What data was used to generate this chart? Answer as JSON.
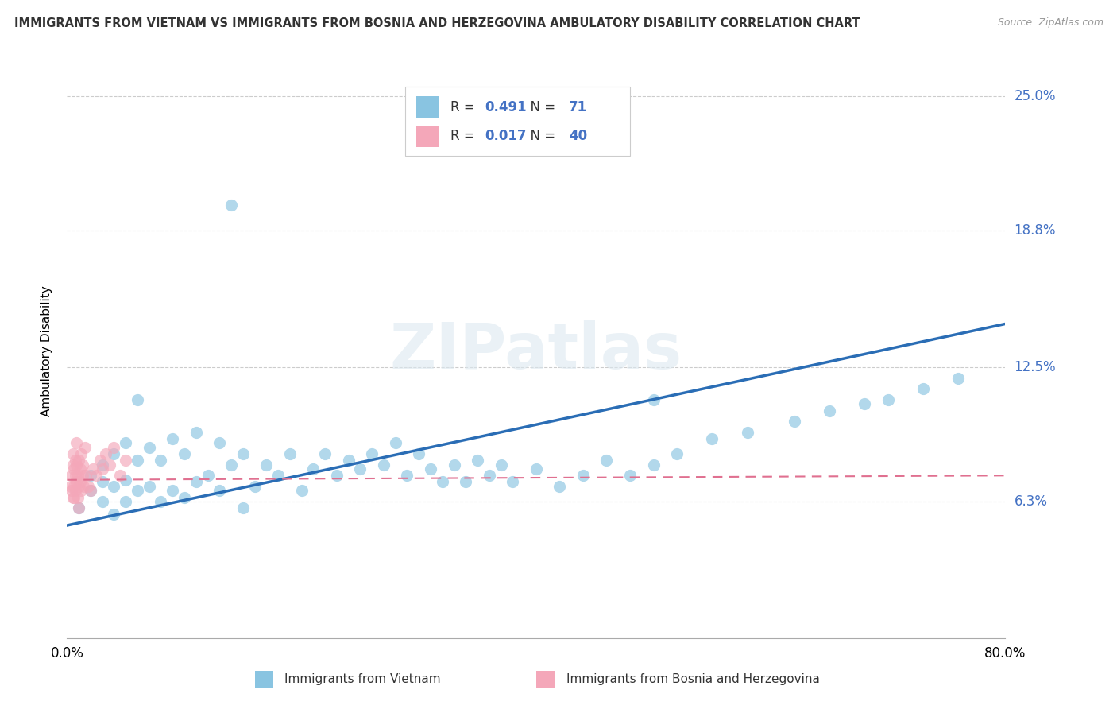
{
  "title": "IMMIGRANTS FROM VIETNAM VS IMMIGRANTS FROM BOSNIA AND HERZEGOVINA AMBULATORY DISABILITY CORRELATION CHART",
  "source": "Source: ZipAtlas.com",
  "ylabel": "Ambulatory Disability",
  "xlim": [
    0.0,
    0.8
  ],
  "ylim": [
    0.0,
    0.265
  ],
  "yticks": [
    0.063,
    0.125,
    0.188,
    0.25
  ],
  "ytick_labels": [
    "6.3%",
    "12.5%",
    "18.8%",
    "25.0%"
  ],
  "xtick_labels": [
    "0.0%",
    "80.0%"
  ],
  "color_vietnam": "#89c4e1",
  "color_bosnia": "#f4a7b9",
  "trend_vietnam_color": "#2a6db5",
  "trend_bosnia_color": "#e07090",
  "R_vietnam": 0.491,
  "N_vietnam": 71,
  "R_bosnia": 0.017,
  "N_bosnia": 40,
  "watermark": "ZIPatlas",
  "legend_label_vietnam": "Immigrants from Vietnam",
  "legend_label_bosnia": "Immigrants from Bosnia and Herzegovina",
  "vietnam_trend_x0": 0.0,
  "vietnam_trend_y0": 0.052,
  "vietnam_trend_x1": 0.8,
  "vietnam_trend_y1": 0.145,
  "bosnia_trend_x0": 0.0,
  "bosnia_trend_y0": 0.073,
  "bosnia_trend_x1": 0.8,
  "bosnia_trend_y1": 0.075,
  "vietnam_x": [
    0.01,
    0.02,
    0.02,
    0.03,
    0.03,
    0.03,
    0.04,
    0.04,
    0.04,
    0.05,
    0.05,
    0.05,
    0.06,
    0.06,
    0.06,
    0.07,
    0.07,
    0.08,
    0.08,
    0.09,
    0.09,
    0.1,
    0.1,
    0.11,
    0.11,
    0.12,
    0.13,
    0.13,
    0.14,
    0.15,
    0.15,
    0.16,
    0.17,
    0.18,
    0.19,
    0.2,
    0.21,
    0.22,
    0.23,
    0.24,
    0.25,
    0.26,
    0.27,
    0.28,
    0.29,
    0.3,
    0.31,
    0.32,
    0.33,
    0.34,
    0.35,
    0.36,
    0.37,
    0.38,
    0.4,
    0.42,
    0.44,
    0.46,
    0.48,
    0.5,
    0.52,
    0.55,
    0.58,
    0.62,
    0.65,
    0.68,
    0.7,
    0.73,
    0.76,
    0.5,
    0.14
  ],
  "vietnam_y": [
    0.06,
    0.068,
    0.075,
    0.063,
    0.072,
    0.08,
    0.057,
    0.07,
    0.085,
    0.063,
    0.073,
    0.09,
    0.068,
    0.082,
    0.11,
    0.07,
    0.088,
    0.063,
    0.082,
    0.068,
    0.092,
    0.065,
    0.085,
    0.072,
    0.095,
    0.075,
    0.068,
    0.09,
    0.08,
    0.06,
    0.085,
    0.07,
    0.08,
    0.075,
    0.085,
    0.068,
    0.078,
    0.085,
    0.075,
    0.082,
    0.078,
    0.085,
    0.08,
    0.09,
    0.075,
    0.085,
    0.078,
    0.072,
    0.08,
    0.072,
    0.082,
    0.075,
    0.08,
    0.072,
    0.078,
    0.07,
    0.075,
    0.082,
    0.075,
    0.08,
    0.085,
    0.092,
    0.095,
    0.1,
    0.105,
    0.108,
    0.11,
    0.115,
    0.12,
    0.11,
    0.2
  ],
  "bosnia_x": [
    0.003,
    0.004,
    0.004,
    0.005,
    0.005,
    0.005,
    0.006,
    0.006,
    0.006,
    0.007,
    0.007,
    0.007,
    0.008,
    0.008,
    0.008,
    0.009,
    0.009,
    0.01,
    0.01,
    0.01,
    0.011,
    0.011,
    0.012,
    0.012,
    0.013,
    0.013,
    0.014,
    0.015,
    0.016,
    0.018,
    0.02,
    0.022,
    0.025,
    0.028,
    0.03,
    0.033,
    0.036,
    0.04,
    0.045,
    0.05
  ],
  "bosnia_y": [
    0.07,
    0.075,
    0.068,
    0.08,
    0.065,
    0.085,
    0.07,
    0.078,
    0.065,
    0.082,
    0.075,
    0.068,
    0.08,
    0.072,
    0.09,
    0.065,
    0.075,
    0.07,
    0.082,
    0.06,
    0.078,
    0.072,
    0.085,
    0.068,
    0.075,
    0.08,
    0.07,
    0.088,
    0.075,
    0.07,
    0.068,
    0.078,
    0.075,
    0.082,
    0.078,
    0.085,
    0.08,
    0.088,
    0.075,
    0.082
  ]
}
